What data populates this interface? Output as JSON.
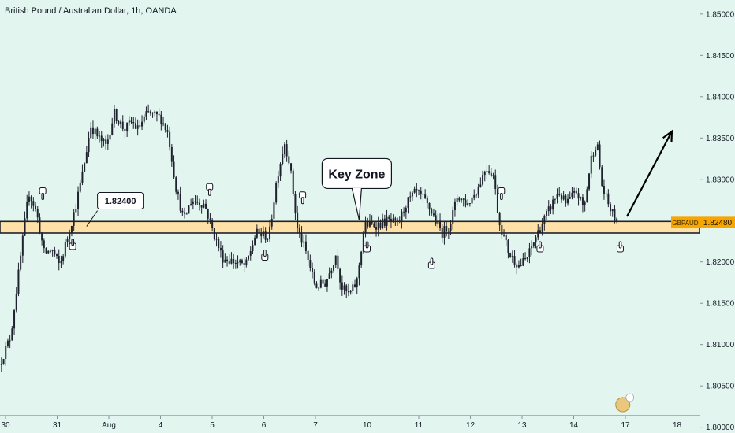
{
  "window": {
    "title": "British Pound / Australian Dollar, 1h, OANDA"
  },
  "colors": {
    "background": "#e2f5ef",
    "candle": "#1e222d",
    "zone_fill": "#ffe0a6",
    "zone_border": "#1e222d",
    "price_tag": "#f7a600",
    "arrow": "#000000"
  },
  "chart_data": {
    "type": "candlestick",
    "title": "British Pound / Australian Dollar, 1h, OANDA",
    "xlabel": "",
    "ylabel": "",
    "x_ticks": [
      "30",
      "31",
      "Aug",
      "4",
      "5",
      "6",
      "7",
      "10",
      "11",
      "12",
      "13",
      "14",
      "17",
      "18"
    ],
    "x_tick_days": [
      0,
      1,
      2,
      3,
      4,
      5,
      6,
      7,
      8,
      9,
      10,
      11,
      12,
      13
    ],
    "y_ticks": [
      "1.85000",
      "1.84500",
      "1.84000",
      "1.83500",
      "1.83000",
      "1.82500",
      "1.82000",
      "1.81500",
      "1.81000",
      "1.80500",
      "1.80000"
    ],
    "ylim": [
      1.7993,
      1.8517
    ],
    "current_price": {
      "symbol": "GBPAUD",
      "value": "1.82480"
    },
    "key_zone": {
      "lower": 1.8235,
      "upper": 1.8249
    },
    "annotations": {
      "level_label": "1.82400",
      "zone_label": "Key Zone"
    },
    "forecast_arrow": {
      "from": [
        12.03,
        1.8255
      ],
      "to": [
        12.9,
        1.8358
      ]
    },
    "price_path": [
      [
        -0.12,
        1.8075
      ],
      [
        0.1,
        1.811
      ],
      [
        0.3,
        1.821
      ],
      [
        0.45,
        1.8285
      ],
      [
        0.6,
        1.826
      ],
      [
        0.75,
        1.821
      ],
      [
        0.9,
        1.8215
      ],
      [
        1.05,
        1.8195
      ],
      [
        1.2,
        1.823
      ],
      [
        1.35,
        1.8265
      ],
      [
        1.5,
        1.831
      ],
      [
        1.65,
        1.8365
      ],
      [
        1.8,
        1.835
      ],
      [
        1.95,
        1.834
      ],
      [
        2.1,
        1.838
      ],
      [
        2.3,
        1.836
      ],
      [
        2.45,
        1.837
      ],
      [
        2.55,
        1.836
      ],
      [
        2.75,
        1.838
      ],
      [
        3.0,
        1.8375
      ],
      [
        3.15,
        1.8355
      ],
      [
        3.3,
        1.829
      ],
      [
        3.45,
        1.825
      ],
      [
        3.6,
        1.8275
      ],
      [
        3.85,
        1.827
      ],
      [
        4.0,
        1.824
      ],
      [
        4.2,
        1.8205
      ],
      [
        4.45,
        1.82
      ],
      [
        4.65,
        1.8195
      ],
      [
        4.85,
        1.8235
      ],
      [
        5.1,
        1.823
      ],
      [
        5.25,
        1.83
      ],
      [
        5.4,
        1.8345
      ],
      [
        5.5,
        1.832
      ],
      [
        5.65,
        1.824
      ],
      [
        5.8,
        1.8215
      ],
      [
        6.0,
        1.817
      ],
      [
        6.2,
        1.8175
      ],
      [
        6.4,
        1.821
      ],
      [
        6.5,
        1.817
      ],
      [
        6.65,
        1.816
      ],
      [
        6.8,
        1.8175
      ],
      [
        6.95,
        1.8245
      ],
      [
        7.2,
        1.8245
      ],
      [
        7.4,
        1.825
      ],
      [
        7.6,
        1.8245
      ],
      [
        7.75,
        1.827
      ],
      [
        7.95,
        1.8285
      ],
      [
        8.1,
        1.8275
      ],
      [
        8.25,
        1.826
      ],
      [
        8.45,
        1.8235
      ],
      [
        8.6,
        1.8245
      ],
      [
        8.75,
        1.828
      ],
      [
        8.95,
        1.827
      ],
      [
        9.15,
        1.829
      ],
      [
        9.3,
        1.8315
      ],
      [
        9.45,
        1.8305
      ],
      [
        9.55,
        1.825
      ],
      [
        9.75,
        1.821
      ],
      [
        9.95,
        1.8195
      ],
      [
        10.1,
        1.8205
      ],
      [
        10.3,
        1.8235
      ],
      [
        10.5,
        1.826
      ],
      [
        10.7,
        1.8285
      ],
      [
        10.85,
        1.827
      ],
      [
        11.05,
        1.8285
      ],
      [
        11.2,
        1.8265
      ],
      [
        11.35,
        1.833
      ],
      [
        11.45,
        1.8345
      ],
      [
        11.55,
        1.829
      ],
      [
        11.7,
        1.8265
      ],
      [
        11.85,
        1.8245
      ]
    ]
  }
}
